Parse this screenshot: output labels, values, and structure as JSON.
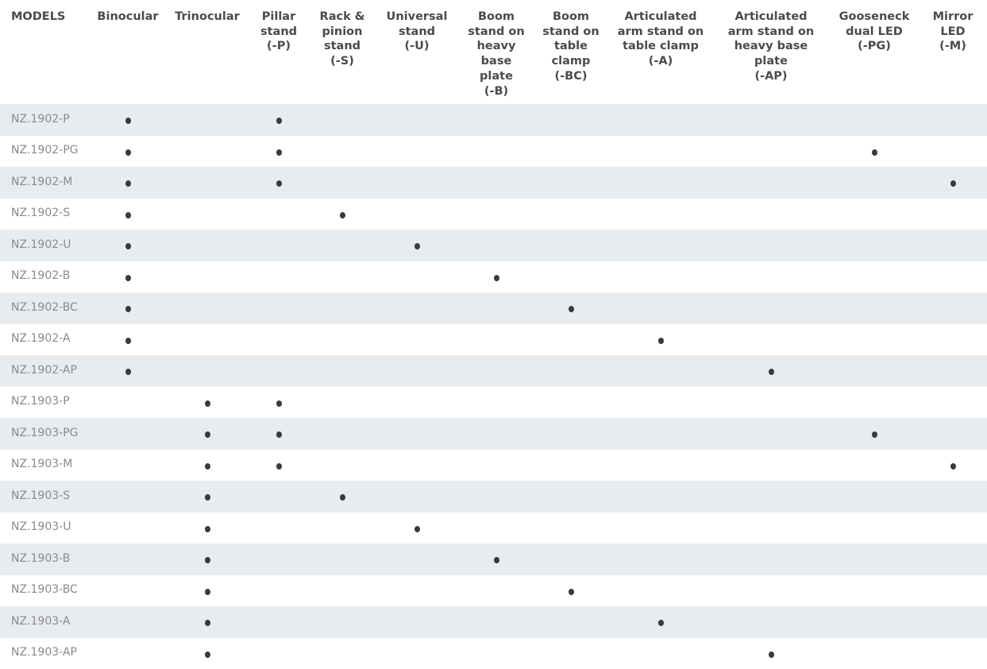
{
  "columns": [
    {
      "key": "models",
      "lines": [
        "MODELS"
      ]
    },
    {
      "key": "binocular",
      "lines": [
        "Binocular"
      ]
    },
    {
      "key": "trinocular",
      "lines": [
        "Trinocular"
      ]
    },
    {
      "key": "pillar",
      "lines": [
        "Pillar",
        "stand",
        "(-P)"
      ]
    },
    {
      "key": "rack",
      "lines": [
        "Rack &",
        "pinion",
        "stand",
        "(-S)"
      ]
    },
    {
      "key": "universal",
      "lines": [
        "Universal",
        "stand",
        "(-U)"
      ]
    },
    {
      "key": "boom_heavy",
      "lines": [
        "Boom",
        "stand on",
        "heavy",
        "base",
        "plate",
        "(-B)"
      ]
    },
    {
      "key": "boom_table",
      "lines": [
        "Boom",
        "stand on",
        "table",
        "clamp",
        "(-BC)"
      ]
    },
    {
      "key": "art_table",
      "lines": [
        "Articulated",
        "arm stand on",
        "table clamp",
        "(-A)"
      ]
    },
    {
      "key": "art_heavy",
      "lines": [
        "Articulated",
        "arm stand on",
        "heavy base",
        "plate",
        "(-AP)"
      ]
    },
    {
      "key": "gooseneck",
      "lines": [
        "Gooseneck",
        "dual LED",
        "(-PG)"
      ]
    },
    {
      "key": "mirror",
      "lines": [
        "Mirror",
        "LED",
        "(-M)"
      ]
    }
  ],
  "rows": [
    {
      "model": "NZ.1902-P",
      "marks": [
        1,
        0,
        1,
        0,
        0,
        0,
        0,
        0,
        0,
        0,
        0
      ]
    },
    {
      "model": "NZ.1902-PG",
      "marks": [
        1,
        0,
        1,
        0,
        0,
        0,
        0,
        0,
        0,
        1,
        0
      ]
    },
    {
      "model": "NZ.1902-M",
      "marks": [
        1,
        0,
        1,
        0,
        0,
        0,
        0,
        0,
        0,
        0,
        1
      ]
    },
    {
      "model": "NZ.1902-S",
      "marks": [
        1,
        0,
        0,
        1,
        0,
        0,
        0,
        0,
        0,
        0,
        0
      ]
    },
    {
      "model": "NZ.1902-U",
      "marks": [
        1,
        0,
        0,
        0,
        1,
        0,
        0,
        0,
        0,
        0,
        0
      ]
    },
    {
      "model": "NZ.1902-B",
      "marks": [
        1,
        0,
        0,
        0,
        0,
        1,
        0,
        0,
        0,
        0,
        0
      ]
    },
    {
      "model": "NZ.1902-BC",
      "marks": [
        1,
        0,
        0,
        0,
        0,
        0,
        1,
        0,
        0,
        0,
        0
      ]
    },
    {
      "model": "NZ.1902-A",
      "marks": [
        1,
        0,
        0,
        0,
        0,
        0,
        0,
        1,
        0,
        0,
        0
      ]
    },
    {
      "model": "NZ.1902-AP",
      "marks": [
        1,
        0,
        0,
        0,
        0,
        0,
        0,
        0,
        1,
        0,
        0
      ]
    },
    {
      "model": "NZ.1903-P",
      "marks": [
        0,
        1,
        1,
        0,
        0,
        0,
        0,
        0,
        0,
        0,
        0
      ]
    },
    {
      "model": "NZ.1903-PG",
      "marks": [
        0,
        1,
        1,
        0,
        0,
        0,
        0,
        0,
        0,
        1,
        0
      ]
    },
    {
      "model": "NZ.1903-M",
      "marks": [
        0,
        1,
        1,
        0,
        0,
        0,
        0,
        0,
        0,
        0,
        1
      ]
    },
    {
      "model": "NZ.1903-S",
      "marks": [
        0,
        1,
        0,
        1,
        0,
        0,
        0,
        0,
        0,
        0,
        0
      ]
    },
    {
      "model": "NZ.1903-U",
      "marks": [
        0,
        1,
        0,
        0,
        1,
        0,
        0,
        0,
        0,
        0,
        0
      ]
    },
    {
      "model": "NZ.1903-B",
      "marks": [
        0,
        1,
        0,
        0,
        0,
        1,
        0,
        0,
        0,
        0,
        0
      ]
    },
    {
      "model": "NZ.1903-BC",
      "marks": [
        0,
        1,
        0,
        0,
        0,
        0,
        1,
        0,
        0,
        0,
        0
      ]
    },
    {
      "model": "NZ.1903-A",
      "marks": [
        0,
        1,
        0,
        0,
        0,
        0,
        0,
        1,
        0,
        0,
        0
      ]
    },
    {
      "model": "NZ.1903-AP",
      "marks": [
        0,
        1,
        0,
        0,
        0,
        0,
        0,
        0,
        1,
        0,
        0
      ]
    }
  ],
  "colors": {
    "header_text": "#4b4b4b",
    "model_text": "#8a8a8a",
    "stripe": "#e9ecef",
    "dot": "#3a3a3a"
  }
}
